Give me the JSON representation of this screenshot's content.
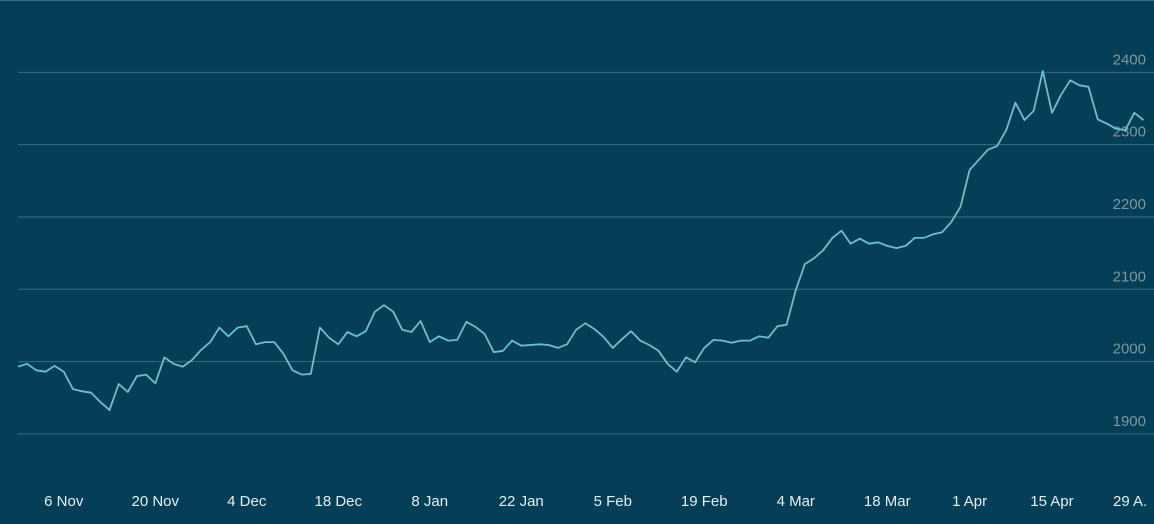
{
  "chart_data": {
    "type": "line",
    "categories": [
      null,
      null,
      null,
      null,
      null,
      "6 Nov",
      null,
      null,
      null,
      null,
      null,
      null,
      null,
      null,
      null,
      "20 Nov",
      null,
      null,
      null,
      null,
      null,
      null,
      null,
      null,
      null,
      "4 Dec",
      null,
      null,
      null,
      null,
      null,
      null,
      null,
      null,
      null,
      "18 Dec",
      null,
      null,
      null,
      null,
      null,
      null,
      null,
      null,
      null,
      "8 Jan",
      null,
      null,
      null,
      null,
      null,
      null,
      null,
      null,
      null,
      "22 Jan",
      null,
      null,
      null,
      null,
      null,
      null,
      null,
      null,
      null,
      "5 Feb",
      null,
      null,
      null,
      null,
      null,
      null,
      null,
      null,
      null,
      "19 Feb",
      null,
      null,
      null,
      null,
      null,
      null,
      null,
      null,
      null,
      "4 Mar",
      null,
      null,
      null,
      null,
      null,
      null,
      null,
      null,
      null,
      "18 Mar",
      null,
      null,
      null,
      null,
      null,
      null,
      null,
      null,
      "1 Apr",
      null,
      null,
      null,
      null,
      null,
      null,
      null,
      null,
      "15 Apr",
      null,
      null,
      null,
      null,
      null,
      null,
      null,
      null,
      "29 A...",
      null
    ],
    "series": [
      {
        "color": "#6cc0c6",
        "values": [
          1993,
          1997,
          1988,
          1986,
          1994,
          1986,
          1962,
          1959,
          1957,
          1944,
          1933,
          1969,
          1958,
          1980,
          1982,
          1970,
          2006,
          1997,
          1993,
          2002,
          2016,
          2027,
          2047,
          2035,
          2047,
          2049,
          2024,
          2027,
          2027,
          2011,
          1988,
          1982,
          1983,
          2047,
          2033,
          2024,
          2041,
          2035,
          2042,
          2069,
          2078,
          2069,
          2044,
          2041,
          2056,
          2027,
          2035,
          2029,
          2030,
          2055,
          2048,
          2038,
          2013,
          2015,
          2029,
          2022,
          2023,
          2024,
          2023,
          2019,
          2024,
          2044,
          2053,
          2045,
          2034,
          2019,
          2031,
          2042,
          2029,
          2023,
          2015,
          1997,
          1986,
          2006,
          1999,
          2019,
          2030,
          2029,
          2026,
          2029,
          2029,
          2035,
          2033,
          2049,
          2051,
          2099,
          2135,
          2143,
          2154,
          2171,
          2181,
          2163,
          2170,
          2163,
          2165,
          2160,
          2157,
          2160,
          2171,
          2171,
          2176,
          2179,
          2193,
          2214,
          2265,
          2279,
          2293,
          2298,
          2320,
          2358,
          2334,
          2347,
          2402,
          2344,
          2369,
          2389,
          2382,
          2380,
          2335,
          2329,
          2322,
          2320,
          2344,
          2334
        ]
      }
    ],
    "ylim": [
      1828,
      2500
    ],
    "yticks": [
      1900,
      2000,
      2100,
      2200,
      2300,
      2400
    ],
    "grid": true
  }
}
